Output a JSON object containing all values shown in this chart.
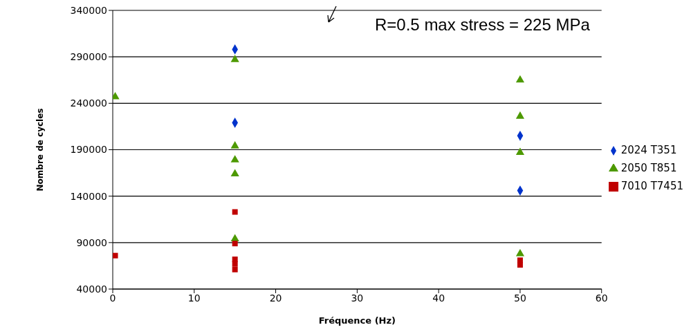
{
  "chart_data": {
    "type": "scatter",
    "xlabel": "Fréquence (Hz)",
    "ylabel": "Nombre de cycles",
    "annotations": [
      "R=0.5 max stress = 225 MPa"
    ],
    "xlim": [
      0,
      60
    ],
    "xticks": [
      0,
      10,
      20,
      30,
      40,
      50,
      60
    ],
    "ylim": [
      40000,
      340000
    ],
    "yticks": [
      40000,
      90000,
      140000,
      190000,
      240000,
      290000,
      340000
    ],
    "grid": "y",
    "legend": "right",
    "series": [
      {
        "name": "2024 T351",
        "color": "#0033cc",
        "marker": "diamond",
        "x": [
          15,
          15,
          50,
          50
        ],
        "values": [
          298000,
          219000,
          205000,
          146000
        ]
      },
      {
        "name": "2050 T851",
        "color": "#4d9900",
        "marker": "triangle",
        "x": [
          0.3,
          15,
          15,
          15,
          15,
          15,
          50,
          50,
          50,
          50
        ],
        "values": [
          247000,
          287000,
          194000,
          179000,
          164000,
          94000,
          265000,
          226000,
          187000,
          78000
        ]
      },
      {
        "name": "7010 T7451",
        "color": "#c00000",
        "marker": "square",
        "x": [
          0.3,
          15,
          15,
          15,
          15,
          15,
          50,
          50
        ],
        "values": [
          76000,
          123000,
          89000,
          72000,
          67000,
          61000,
          71000,
          66000
        ]
      }
    ]
  }
}
